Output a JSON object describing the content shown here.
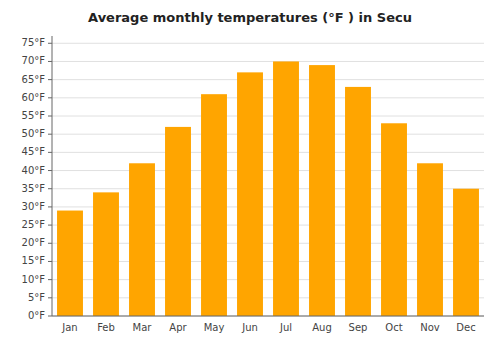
{
  "chart_data": {
    "type": "bar",
    "title": "Average monthly temperatures (°F ) in Secu",
    "categories": [
      "Jan",
      "Feb",
      "Mar",
      "Apr",
      "May",
      "Jun",
      "Jul",
      "Aug",
      "Sep",
      "Oct",
      "Nov",
      "Dec"
    ],
    "values": [
      29,
      34,
      42,
      52,
      61,
      67,
      70,
      69,
      63,
      53,
      42,
      35
    ],
    "color": "#FFA500",
    "ylim": [
      0,
      77
    ],
    "yticks": [
      {
        "value": 0,
        "label": "0°F"
      },
      {
        "value": 5,
        "label": "5°F"
      },
      {
        "value": 10,
        "label": "10°F"
      },
      {
        "value": 15,
        "label": "15°F"
      },
      {
        "value": 20,
        "label": "20°F"
      },
      {
        "value": 25,
        "label": "25°F"
      },
      {
        "value": 30,
        "label": "30°F"
      },
      {
        "value": 35,
        "label": "35°F"
      },
      {
        "value": 40,
        "label": "40°F"
      },
      {
        "value": 45,
        "label": "45°F"
      },
      {
        "value": 50,
        "label": "50°F"
      },
      {
        "value": 55,
        "label": "55°F"
      },
      {
        "value": 60,
        "label": "60°F"
      },
      {
        "value": 65,
        "label": "65°F"
      },
      {
        "value": 70,
        "label": "70°F"
      },
      {
        "value": 75,
        "label": "75°F"
      }
    ],
    "grid": true
  }
}
